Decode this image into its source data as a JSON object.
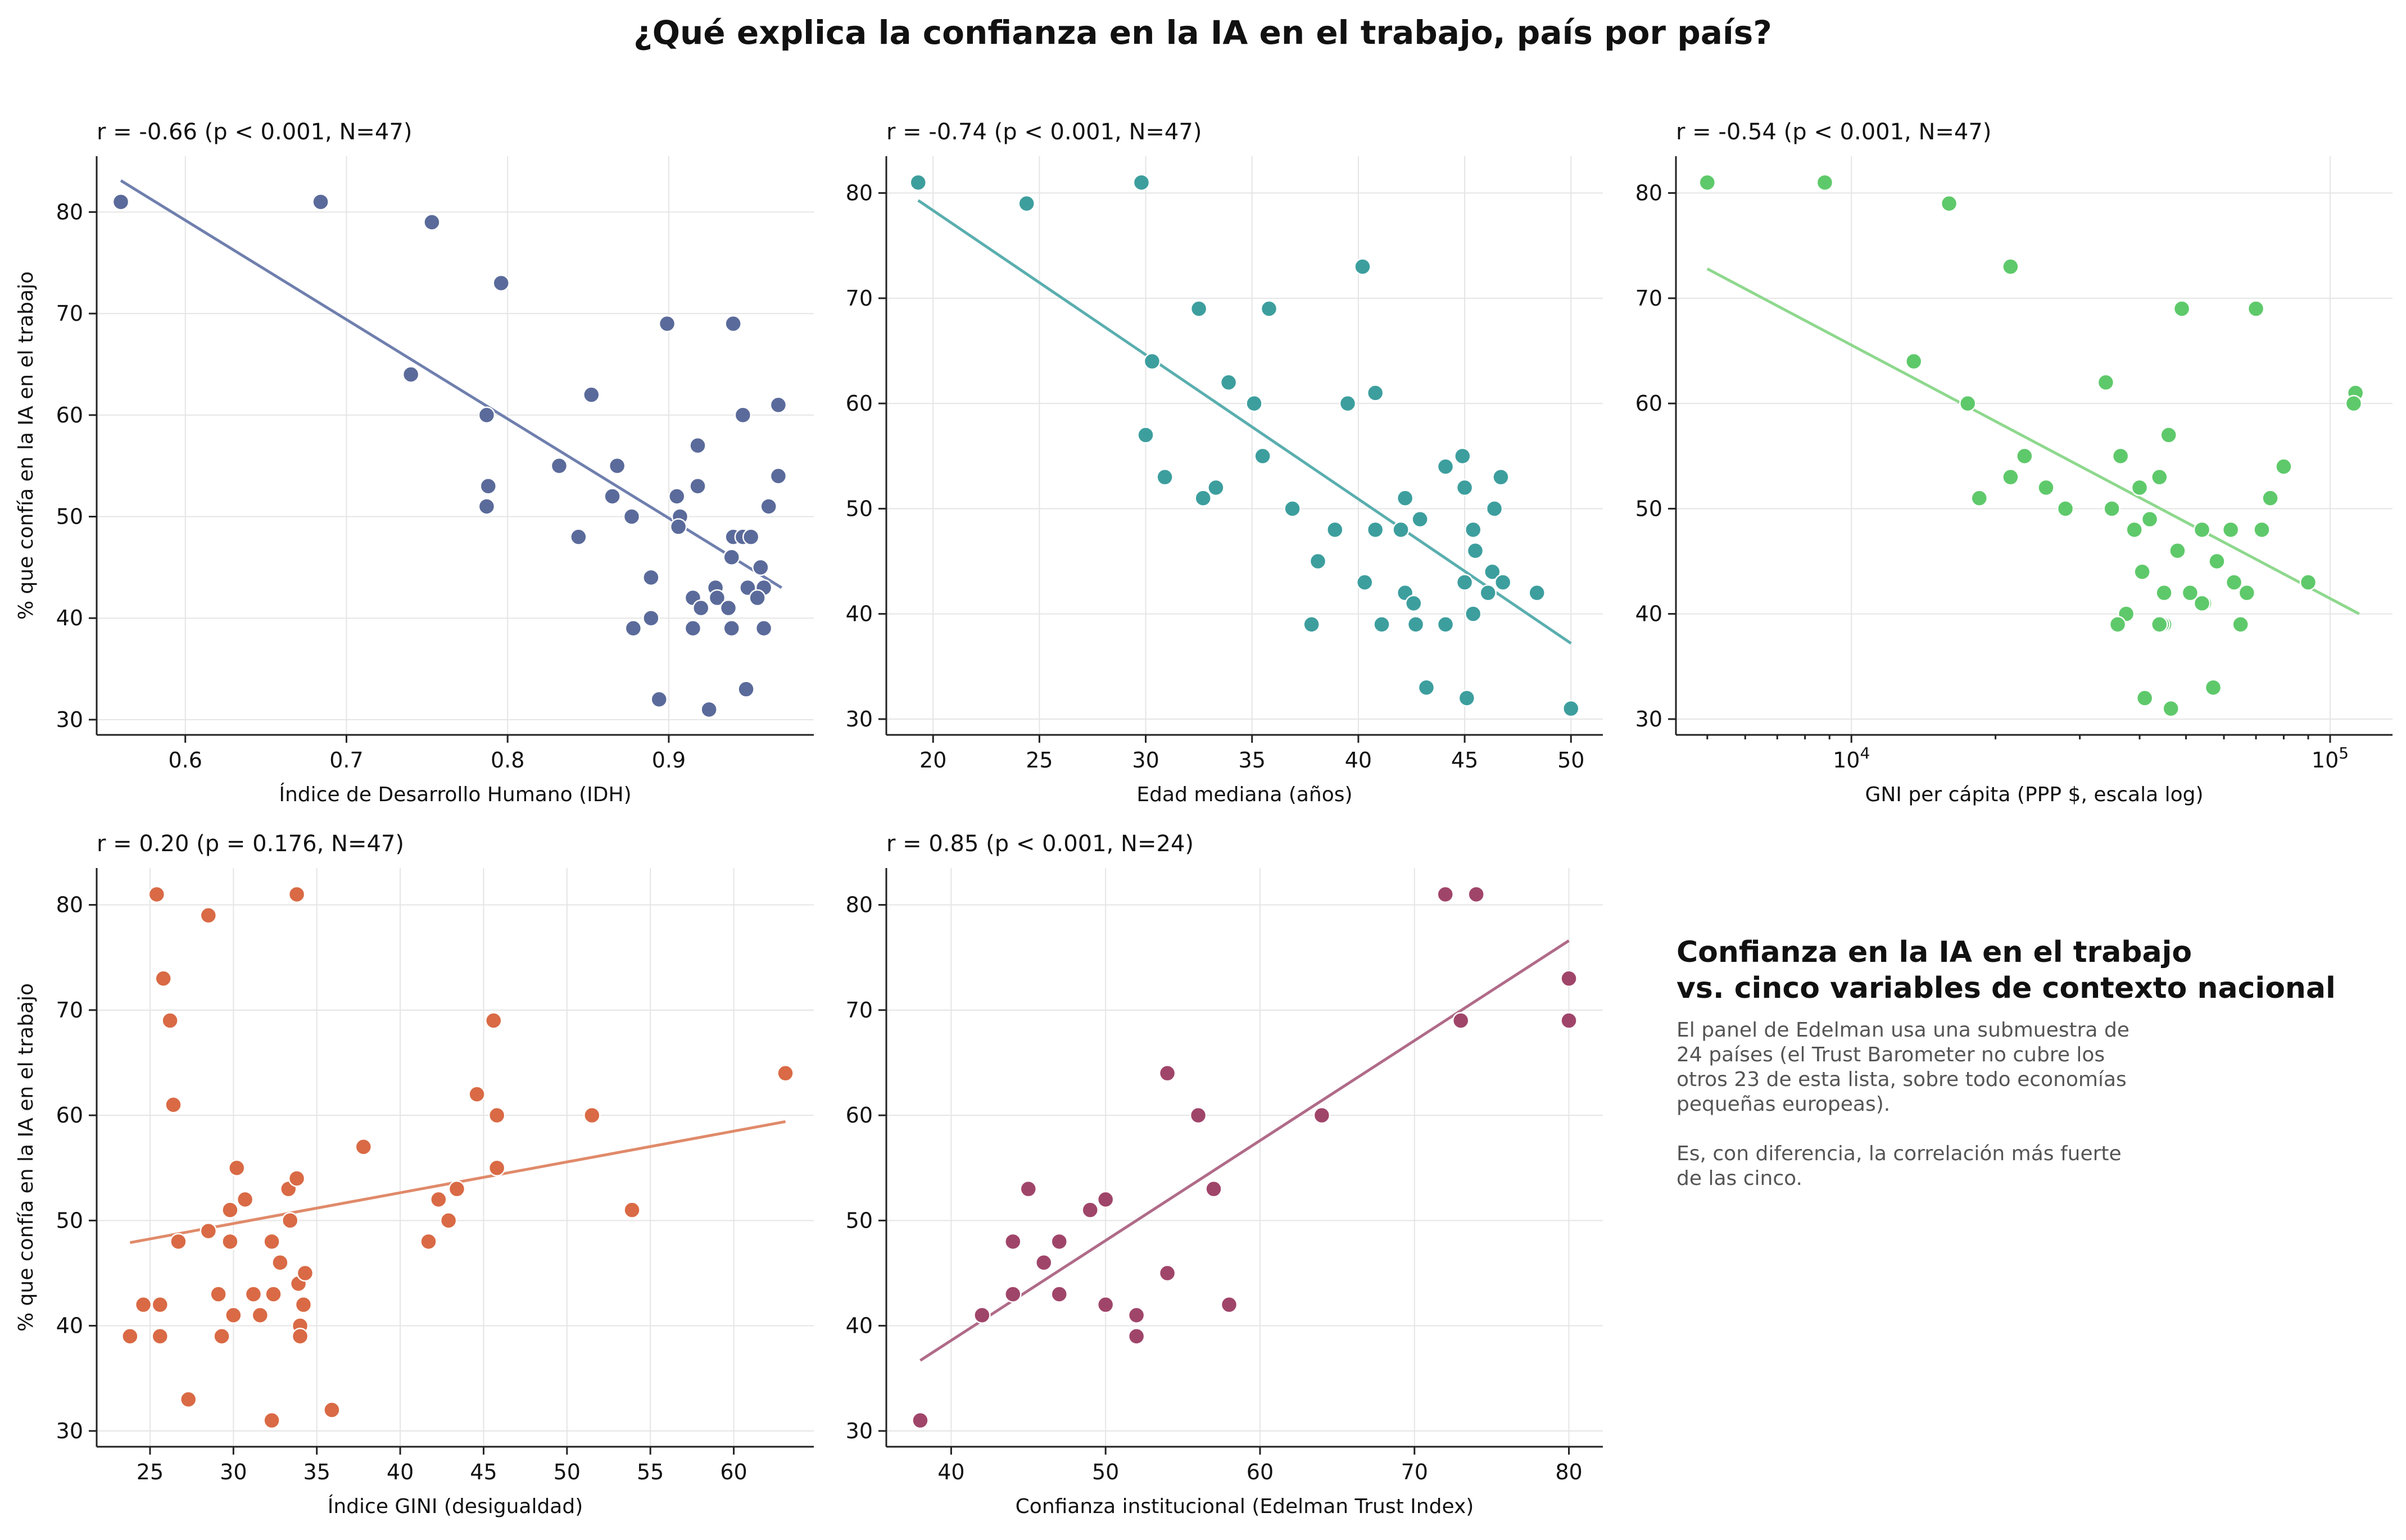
{
  "title": "¿Qué explica la confianza en la IA en el trabajo, país por país?",
  "note": {
    "title_lines": [
      "Confianza en la IA en el trabajo",
      "vs. cinco variables de contexto nacional"
    ],
    "paragraph1": [
      "El panel de Edelman usa una submuestra de",
      "24 países (el Trust Barometer no cubre los",
      "otros 23 de esta lista, sobre todo economías",
      "pequeñas europeas)."
    ],
    "paragraph2": [
      "Es, con diferencia, la correlación más fuerte",
      "de las cinco."
    ]
  },
  "chart_data": [
    {
      "type": "scatter",
      "title": "r = -0.66   (p < 0.001, N=47)",
      "xlabel": "Índice de Desarrollo Humano (IDH)",
      "ylabel": "% que confía en la IA en el trabajo",
      "xscale": "linear",
      "xlim": [
        0.545,
        0.99
      ],
      "ylim": [
        28.5,
        85.5
      ],
      "xticks": [
        0.6,
        0.7,
        0.8,
        0.9
      ],
      "xtick_labels": [
        "0.6",
        "0.7",
        "0.8",
        "0.9"
      ],
      "yticks": [
        30,
        40,
        50,
        60,
        70,
        80
      ],
      "ytick_labels": [
        "30",
        "40",
        "50",
        "60",
        "70",
        "80"
      ],
      "color": "#5a6a9a",
      "line_color": "#6f7fae",
      "fit": {
        "x": [
          0.56,
          0.97
        ],
        "y": [
          83.1,
          43.0
        ]
      },
      "points": [
        [
          0.56,
          81
        ],
        [
          0.684,
          81
        ],
        [
          0.753,
          79
        ],
        [
          0.796,
          73
        ],
        [
          0.74,
          64
        ],
        [
          0.787,
          60
        ],
        [
          0.788,
          53
        ],
        [
          0.787,
          51
        ],
        [
          0.899,
          69
        ],
        [
          0.94,
          69
        ],
        [
          0.852,
          62
        ],
        [
          0.832,
          55
        ],
        [
          0.868,
          55
        ],
        [
          0.865,
          52
        ],
        [
          0.877,
          50
        ],
        [
          0.844,
          48
        ],
        [
          0.905,
          52
        ],
        [
          0.907,
          50
        ],
        [
          0.906,
          49
        ],
        [
          0.918,
          57
        ],
        [
          0.918,
          53
        ],
        [
          0.946,
          60
        ],
        [
          0.968,
          61
        ],
        [
          0.962,
          51
        ],
        [
          0.968,
          54
        ],
        [
          0.939,
          46
        ],
        [
          0.94,
          48
        ],
        [
          0.946,
          48
        ],
        [
          0.951,
          48
        ],
        [
          0.957,
          45
        ],
        [
          0.959,
          43
        ],
        [
          0.949,
          43
        ],
        [
          0.955,
          42
        ],
        [
          0.929,
          43
        ],
        [
          0.93,
          42
        ],
        [
          0.915,
          42
        ],
        [
          0.92,
          41
        ],
        [
          0.937,
          41
        ],
        [
          0.889,
          44
        ],
        [
          0.889,
          40
        ],
        [
          0.878,
          39
        ],
        [
          0.915,
          39
        ],
        [
          0.939,
          39
        ],
        [
          0.959,
          39
        ],
        [
          0.894,
          32
        ],
        [
          0.925,
          31
        ],
        [
          0.948,
          33
        ]
      ]
    },
    {
      "type": "scatter",
      "title": "r = -0.74   (p < 0.001, N=47)",
      "xlabel": "Edad mediana (años)",
      "ylabel": "",
      "xscale": "linear",
      "xlim": [
        17.8,
        51.5
      ],
      "ylim": [
        28.5,
        83.5
      ],
      "xticks": [
        20,
        25,
        30,
        35,
        40,
        45,
        50
      ],
      "xtick_labels": [
        "20",
        "25",
        "30",
        "35",
        "40",
        "45",
        "50"
      ],
      "yticks": [
        30,
        40,
        50,
        60,
        70,
        80
      ],
      "ytick_labels": [
        "30",
        "40",
        "50",
        "60",
        "70",
        "80"
      ],
      "color": "#3d9e9e",
      "line_color": "#5aaeae",
      "fit": {
        "x": [
          19.3,
          50.0
        ],
        "y": [
          79.3,
          37.2
        ]
      },
      "points": [
        [
          19.3,
          81
        ],
        [
          24.4,
          79
        ],
        [
          29.8,
          81
        ],
        [
          40.2,
          73
        ],
        [
          32.5,
          69
        ],
        [
          35.8,
          69
        ],
        [
          30.3,
          64
        ],
        [
          33.9,
          62
        ],
        [
          35.1,
          60
        ],
        [
          39.5,
          60
        ],
        [
          40.8,
          61
        ],
        [
          30.0,
          57
        ],
        [
          30.9,
          53
        ],
        [
          32.7,
          51
        ],
        [
          33.3,
          52
        ],
        [
          35.5,
          55
        ],
        [
          36.9,
          50
        ],
        [
          38.1,
          45
        ],
        [
          38.9,
          48
        ],
        [
          37.8,
          39
        ],
        [
          40.3,
          43
        ],
        [
          40.8,
          48
        ],
        [
          42.0,
          48
        ],
        [
          42.2,
          51
        ],
        [
          42.2,
          42
        ],
        [
          42.6,
          41
        ],
        [
          42.9,
          49
        ],
        [
          42.7,
          39
        ],
        [
          43.2,
          33
        ],
        [
          44.1,
          54
        ],
        [
          44.1,
          39
        ],
        [
          44.9,
          55
        ],
        [
          45.0,
          52
        ],
        [
          45.0,
          43
        ],
        [
          45.1,
          32
        ],
        [
          45.4,
          48
        ],
        [
          45.5,
          46
        ],
        [
          45.4,
          40
        ],
        [
          46.1,
          42
        ],
        [
          46.3,
          44
        ],
        [
          46.4,
          50
        ],
        [
          46.7,
          53
        ],
        [
          46.8,
          43
        ],
        [
          48.4,
          42
        ],
        [
          50.0,
          31
        ],
        [
          41.1,
          39
        ],
        [
          42.6,
          41
        ]
      ]
    },
    {
      "type": "scatter",
      "title": "r = -0.54   (p < 0.001, N=47)",
      "xlabel": "GNI per cápita (PPP $, escala log)",
      "ylabel": "",
      "xscale": "log",
      "xlim": [
        4300,
        135000
      ],
      "ylim": [
        28.5,
        83.5
      ],
      "xticks": [
        10000,
        100000
      ],
      "xtick_labels": [
        "10^4",
        "10^5"
      ],
      "yticks": [
        30,
        40,
        50,
        60,
        70,
        80
      ],
      "ytick_labels": [
        "30",
        "40",
        "50",
        "60",
        "70",
        "80"
      ],
      "color": "#5ec96a",
      "line_color": "#8ed88e",
      "fit": {
        "x": [
          5000,
          115000
        ],
        "y": [
          72.8,
          40.0
        ]
      },
      "points": [
        [
          5000,
          81
        ],
        [
          8800,
          81
        ],
        [
          16000,
          79
        ],
        [
          21500,
          73
        ],
        [
          13500,
          64
        ],
        [
          17500,
          60
        ],
        [
          18500,
          51
        ],
        [
          21500,
          53
        ],
        [
          23000,
          55
        ],
        [
          25500,
          52
        ],
        [
          28000,
          50
        ],
        [
          34000,
          62
        ],
        [
          35000,
          50
        ],
        [
          36500,
          55
        ],
        [
          37500,
          40
        ],
        [
          36000,
          39
        ],
        [
          39000,
          48
        ],
        [
          40000,
          52
        ],
        [
          40500,
          44
        ],
        [
          42000,
          49
        ],
        [
          44000,
          53
        ],
        [
          46000,
          57
        ],
        [
          45000,
          42
        ],
        [
          45000,
          39
        ],
        [
          44500,
          39
        ],
        [
          41000,
          32
        ],
        [
          46500,
          31
        ],
        [
          48000,
          46
        ],
        [
          49000,
          69
        ],
        [
          51000,
          42
        ],
        [
          54000,
          48
        ],
        [
          54500,
          41
        ],
        [
          58000,
          45
        ],
        [
          57000,
          33
        ],
        [
          62000,
          48
        ],
        [
          63000,
          43
        ],
        [
          65000,
          39
        ],
        [
          67000,
          42
        ],
        [
          70000,
          69
        ],
        [
          72000,
          48
        ],
        [
          75000,
          51
        ],
        [
          80000,
          54
        ],
        [
          90000,
          43
        ],
        [
          113000,
          61
        ],
        [
          112000,
          60
        ],
        [
          54000,
          41
        ],
        [
          44000,
          39
        ]
      ]
    },
    {
      "type": "scatter",
      "title": "r = 0.20   (p = 0.176, N=47)",
      "xlabel": "Índice GINI (desigualdad)",
      "ylabel": "% que confía en la IA en el trabajo",
      "xscale": "linear",
      "xlim": [
        21.8,
        64.8
      ],
      "ylim": [
        28.5,
        83.5
      ],
      "xticks": [
        25,
        30,
        35,
        40,
        45,
        50,
        55,
        60
      ],
      "xtick_labels": [
        "25",
        "30",
        "35",
        "40",
        "45",
        "50",
        "55",
        "60"
      ],
      "yticks": [
        30,
        40,
        50,
        60,
        70,
        80
      ],
      "ytick_labels": [
        "30",
        "40",
        "50",
        "60",
        "70",
        "80"
      ],
      "color": "#d96a45",
      "line_color": "#e08a6a",
      "fit": {
        "x": [
          23.8,
          63.1
        ],
        "y": [
          47.9,
          59.4
        ]
      },
      "points": [
        [
          23.8,
          39
        ],
        [
          24.6,
          42
        ],
        [
          25.4,
          81
        ],
        [
          25.8,
          73
        ],
        [
          25.6,
          42
        ],
        [
          25.6,
          39
        ],
        [
          26.2,
          69
        ],
        [
          26.4,
          61
        ],
        [
          26.7,
          48
        ],
        [
          27.3,
          33
        ],
        [
          28.5,
          79
        ],
        [
          28.5,
          49
        ],
        [
          29.1,
          43
        ],
        [
          29.3,
          39
        ],
        [
          29.8,
          51
        ],
        [
          29.8,
          48
        ],
        [
          30.0,
          41
        ],
        [
          30.2,
          55
        ],
        [
          30.7,
          52
        ],
        [
          31.2,
          43
        ],
        [
          31.6,
          41
        ],
        [
          32.3,
          31
        ],
        [
          32.3,
          48
        ],
        [
          32.4,
          43
        ],
        [
          32.8,
          46
        ],
        [
          33.3,
          53
        ],
        [
          33.4,
          50
        ],
        [
          33.8,
          81
        ],
        [
          33.8,
          54
        ],
        [
          33.9,
          44
        ],
        [
          34.0,
          40
        ],
        [
          34.0,
          39
        ],
        [
          34.3,
          45
        ],
        [
          34.2,
          42
        ],
        [
          35.9,
          32
        ],
        [
          37.8,
          57
        ],
        [
          41.7,
          48
        ],
        [
          42.3,
          52
        ],
        [
          42.9,
          50
        ],
        [
          43.4,
          53
        ],
        [
          44.6,
          62
        ],
        [
          45.6,
          69
        ],
        [
          45.8,
          60
        ],
        [
          45.8,
          55
        ],
        [
          51.5,
          60
        ],
        [
          53.9,
          51
        ],
        [
          63.1,
          64
        ]
      ]
    },
    {
      "type": "scatter",
      "title": "r = 0.85   (p < 0.001, N=24)",
      "xlabel": "Confianza institucional (Edelman Trust Index)",
      "ylabel": "",
      "xscale": "linear",
      "xlim": [
        35.8,
        82.2
      ],
      "ylim": [
        28.5,
        83.5
      ],
      "xticks": [
        40,
        50,
        60,
        70,
        80
      ],
      "xtick_labels": [
        "40",
        "50",
        "60",
        "70",
        "80"
      ],
      "yticks": [
        30,
        40,
        50,
        60,
        70,
        80
      ],
      "ytick_labels": [
        "30",
        "40",
        "50",
        "60",
        "70",
        "80"
      ],
      "color": "#a0456a",
      "line_color": "#b06b88",
      "fit": {
        "x": [
          38,
          80
        ],
        "y": [
          36.7,
          76.6
        ]
      },
      "points": [
        [
          38,
          31
        ],
        [
          42,
          41
        ],
        [
          44,
          48
        ],
        [
          44,
          43
        ],
        [
          45,
          53
        ],
        [
          46,
          46
        ],
        [
          47,
          48
        ],
        [
          47,
          43
        ],
        [
          49,
          51
        ],
        [
          50,
          52
        ],
        [
          50,
          42
        ],
        [
          52,
          41
        ],
        [
          52,
          39
        ],
        [
          54,
          64
        ],
        [
          54,
          45
        ],
        [
          56,
          60
        ],
        [
          57,
          53
        ],
        [
          58,
          42
        ],
        [
          64,
          60
        ],
        [
          72,
          81
        ],
        [
          73,
          69
        ],
        [
          74,
          81
        ],
        [
          80,
          73
        ],
        [
          80,
          69
        ]
      ]
    }
  ]
}
